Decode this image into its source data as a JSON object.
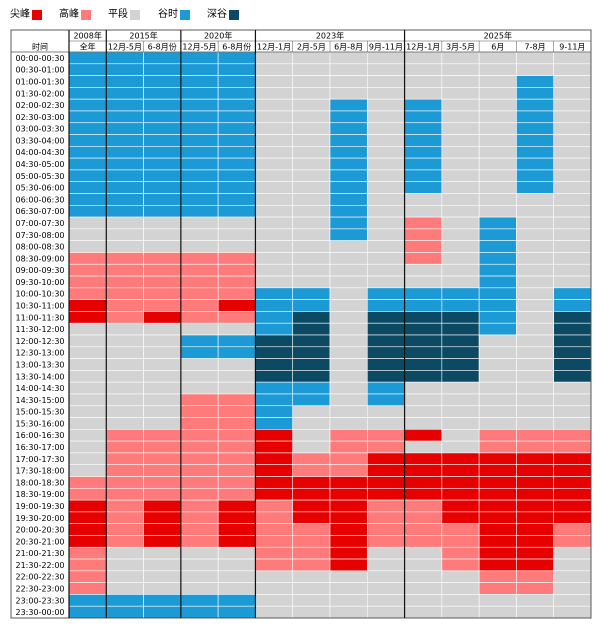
{
  "legend": [
    {
      "key": "peak",
      "label": "尖峰",
      "color": "#e60000"
    },
    {
      "key": "high",
      "label": "高峰",
      "color": "#ff7b7b"
    },
    {
      "key": "flat",
      "label": "平段",
      "color": "#d3d3d3"
    },
    {
      "key": "valley",
      "label": "谷时",
      "color": "#1c9ad6"
    },
    {
      "key": "deep",
      "label": "深谷",
      "color": "#0c4a63"
    }
  ],
  "chart_data": {
    "type": "heatmap",
    "time_header": "时间",
    "year_groups": [
      {
        "year": "2008年",
        "start": 0,
        "span": 1
      },
      {
        "year": "2015年",
        "start": 1,
        "span": 2
      },
      {
        "year": "2020年",
        "start": 3,
        "span": 2
      },
      {
        "year": "2023年",
        "start": 5,
        "span": 4
      },
      {
        "year": "2025年",
        "start": 9,
        "span": 5
      }
    ],
    "columns": [
      "全年",
      "12月-5月",
      "6-8月份",
      "12月-5月",
      "6-8月份",
      "12月-1月",
      "2月-5月",
      "6月-8月",
      "9月-11月",
      "12月-1月",
      "3月-5月",
      "6月",
      "7-8月",
      "9-11月"
    ],
    "rows": [
      "00:00-00:30",
      "00:30-01:00",
      "01:00-01:30",
      "01:30-02:00",
      "02:00-02:30",
      "02:30-03:00",
      "03:00-03:30",
      "03:30-04:00",
      "04:00-04:30",
      "04:30-05:00",
      "05:00-05:30",
      "05:30-06:00",
      "06:00-06:30",
      "06:30-07:00",
      "07:00-07:30",
      "07:30-08:00",
      "08:00-08:30",
      "08:30-09:00",
      "09:00-09:30",
      "09:30-10:00",
      "10:00-10:30",
      "10:30-11:00",
      "11:00-11:30",
      "11:30-12:00",
      "12:00-12:30",
      "12:30-13:00",
      "13:00-13:30",
      "13:30-14:00",
      "14:00-14:30",
      "14:30-15:00",
      "15:00-15:30",
      "15:30-16:00",
      "16:00-16:30",
      "16:30-17:00",
      "17:00-17:30",
      "17:30-18:00",
      "18:00-18:30",
      "18:30-19:00",
      "19:00-19:30",
      "19:30-20:00",
      "20:00-20:30",
      "20:30-21:00",
      "21:00-21:30",
      "21:30-22:00",
      "22:00-22:30",
      "22:30-23:00",
      "23:00-23:30",
      "23:30-00:00"
    ],
    "code_key": {
      "P": "peak",
      "H": "high",
      "F": "flat",
      "V": "valley",
      "D": "deep"
    },
    "cells": [
      "VVVVVFFFFFFFFF",
      "VVVVVFFFFFFFFF",
      "VVVVVFFFFFFFVF",
      "VVVVVFFFFFFFVF",
      "VVVVVFFVFVFFVF",
      "VVVVVFFVFVFFVF",
      "VVVVVFFVFVFFVF",
      "VVVVVFFVFVFFVF",
      "VVVVVFFVFVFFVF",
      "VVVVVFFVFVFFVF",
      "VVVVVFFVFVFFVF",
      "VVVVVFFVFVFFVF",
      "VVVVVFFVFFFFFF",
      "VVVVVFFVFFFFFF",
      "FFFFFFFVFHFVFF",
      "FFFFFFFVFHFVFF",
      "FFFFFFFFFHFVFF",
      "HHHHHFFFFHFVFF",
      "HHHHHFFFFFFVFF",
      "HHHHHFFFFFFVFF",
      "HHHHHVVFVVVVFV",
      "PHHHPVVFVVVVFV",
      "PHPHHVDFDDDVFD",
      "FFFFFVDFDDDVFD",
      "FFFVVDDFDDDFFD",
      "FFFVVDDFDDDFFD",
      "FFFFFDDFDDDFFD",
      "FFFFFDDFDDDFFD",
      "FFFFFVVFVFFFFF",
      "FFFHHVVFVFFFFF",
      "FFFHHVFFFFFFFF",
      "FFFHHVFFFFFFFF",
      "FHHHHPFHHPFHHH",
      "FHHHHPFHHFFHHH",
      "FHHHHPHHPPPPPP",
      "FHHHHPHHPPPPPP",
      "HHHHHPPPPPPPPP",
      "HHHHHPPPPPPPPP",
      "PHPHPHPPHHPPPP",
      "PHPHPHPPHHPPPP",
      "PHPHPHHPHHHPPH",
      "PHPHPHHPHHHPPH",
      "HFFFFHHPFFHPPF",
      "HFFFFHHPFFHPPF",
      "HFFFFFFFFFFHHF",
      "HFFFFFFFFFFHHF",
      "VVVVVFFFFFFFFF",
      "VVVVVFFFFFFFFF"
    ]
  }
}
